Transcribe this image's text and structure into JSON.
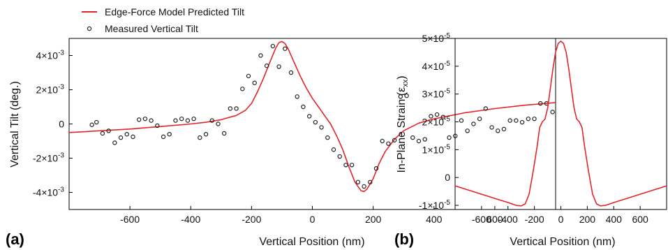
{
  "chart_data": [
    {
      "type": "line+scatter",
      "panel_label": "(a)",
      "xlabel": "Vertical Position (nm)",
      "ylabel": "Vertical Tilt (deg.)",
      "xlim": [
        -800,
        800
      ],
      "ylim": [
        -0.005,
        0.005
      ],
      "xticks": [
        -600,
        -400,
        -200,
        0,
        200,
        400,
        600
      ],
      "yticks": [
        {
          "value": 0.004,
          "mant": "4×10",
          "exp": "-3"
        },
        {
          "value": 0.002,
          "mant": "2×10",
          "exp": "-3"
        },
        {
          "value": 0,
          "mant": "0",
          "exp": ""
        },
        {
          "value": -0.002,
          "mant": "-2×10",
          "exp": "-3"
        },
        {
          "value": -0.004,
          "mant": "-4×10",
          "exp": "-3"
        }
      ],
      "legend": {
        "placement": "top-left, above plot",
        "entries": [
          {
            "label": "Edge-Force Model Predicted Tilt",
            "marker": "line",
            "color": "#e3242b"
          },
          {
            "label": "Measured Vertical Tilt",
            "marker": "circle",
            "color": "#222222"
          }
        ]
      },
      "series": [
        {
          "name": "Edge-Force Model Predicted Tilt",
          "kind": "line",
          "color": "#e3242b",
          "points": [
            [
              -800,
              -0.0005
            ],
            [
              -700,
              -0.0004
            ],
            [
              -600,
              -0.0003
            ],
            [
              -500,
              -0.00015
            ],
            [
              -400,
              0.0
            ],
            [
              -350,
              0.0001
            ],
            [
              -300,
              0.00025
            ],
            [
              -250,
              0.0005
            ],
            [
              -220,
              0.0008
            ],
            [
              -200,
              0.0012
            ],
            [
              -180,
              0.0019
            ],
            [
              -160,
              0.0027
            ],
            [
              -140,
              0.0036
            ],
            [
              -120,
              0.00445
            ],
            [
              -110,
              0.00475
            ],
            [
              -100,
              0.00482
            ],
            [
              -90,
              0.0047
            ],
            [
              -80,
              0.0044
            ],
            [
              -60,
              0.0036
            ],
            [
              -40,
              0.0028
            ],
            [
              -20,
              0.0021
            ],
            [
              0,
              0.0015
            ],
            [
              20,
              0.001
            ],
            [
              40,
              0.0005
            ],
            [
              60,
              0.0
            ],
            [
              80,
              -0.0007
            ],
            [
              100,
              -0.0015
            ],
            [
              120,
              -0.0025
            ],
            [
              140,
              -0.0034
            ],
            [
              160,
              -0.0039
            ],
            [
              170,
              -0.00395
            ],
            [
              180,
              -0.0038
            ],
            [
              200,
              -0.0032
            ],
            [
              220,
              -0.0023
            ],
            [
              240,
              -0.0016
            ],
            [
              270,
              -0.0009
            ],
            [
              300,
              -0.0004
            ],
            [
              350,
              5e-05
            ],
            [
              400,
              0.0003
            ],
            [
              500,
              0.00065
            ],
            [
              600,
              0.0009
            ],
            [
              700,
              0.0011
            ],
            [
              800,
              0.00125
            ]
          ]
        },
        {
          "name": "Measured Vertical Tilt",
          "kind": "scatter",
          "color": "#222222",
          "points": [
            [
              -725,
              -5e-05
            ],
            [
              -710,
              0.0001
            ],
            [
              -690,
              -0.00055
            ],
            [
              -670,
              -0.0004
            ],
            [
              -650,
              -0.0011
            ],
            [
              -630,
              -0.0008
            ],
            [
              -610,
              -0.0006
            ],
            [
              -590,
              -0.00075
            ],
            [
              -570,
              0.00025
            ],
            [
              -550,
              0.0003
            ],
            [
              -530,
              0.0002
            ],
            [
              -510,
              -0.0001
            ],
            [
              -490,
              -0.00075
            ],
            [
              -470,
              -0.0006
            ],
            [
              -450,
              0.0002
            ],
            [
              -430,
              0.0003
            ],
            [
              -410,
              0.0002
            ],
            [
              -390,
              0.0003
            ],
            [
              -370,
              -0.0008
            ],
            [
              -350,
              -0.0006
            ],
            [
              -330,
              0.0002
            ],
            [
              -310,
              0.0
            ],
            [
              -290,
              -0.00055
            ],
            [
              -270,
              0.0009
            ],
            [
              -250,
              0.0009
            ],
            [
              -230,
              0.00205
            ],
            [
              -210,
              0.0028
            ],
            [
              -190,
              0.0024
            ],
            [
              -170,
              0.004
            ],
            [
              -150,
              0.0034
            ],
            [
              -130,
              0.00455
            ],
            [
              -110,
              0.00335
            ],
            [
              -90,
              0.0044
            ],
            [
              -70,
              0.003
            ],
            [
              -50,
              0.0016
            ],
            [
              -30,
              0.001
            ],
            [
              -10,
              0.00045
            ],
            [
              10,
              0.0001
            ],
            [
              30,
              -0.0002
            ],
            [
              50,
              -0.0008
            ],
            [
              70,
              -0.0015
            ],
            [
              90,
              -0.0019
            ],
            [
              110,
              -0.0024
            ],
            [
              130,
              -0.0024
            ],
            [
              150,
              -0.0034
            ],
            [
              170,
              -0.00365
            ],
            [
              190,
              -0.0034
            ],
            [
              210,
              -0.0026
            ],
            [
              230,
              -0.001
            ],
            [
              250,
              -0.00115
            ],
            [
              270,
              -0.00095
            ],
            [
              290,
              0.0016
            ],
            [
              310,
              0.00165
            ],
            [
              330,
              -0.0008
            ],
            [
              350,
              -0.001
            ],
            [
              370,
              -0.0009
            ],
            [
              390,
              0.00045
            ],
            [
              410,
              0.00055
            ],
            [
              430,
              0.0004
            ],
            [
              450,
              -0.0008
            ],
            [
              470,
              -0.0007
            ],
            [
              490,
              0.0002
            ],
            [
              510,
              -0.0004
            ],
            [
              530,
              0.0
            ],
            [
              550,
              0.0003
            ],
            [
              570,
              0.0009
            ],
            [
              590,
              -0.0002
            ],
            [
              610,
              -0.0004
            ],
            [
              630,
              -0.0003
            ],
            [
              650,
              0.0002
            ],
            [
              670,
              0.0002
            ],
            [
              690,
              0.0001
            ],
            [
              710,
              0.0003
            ],
            [
              730,
              0.0003
            ],
            [
              750,
              0.0012
            ],
            [
              770,
              0.0012
            ],
            [
              790,
              0.0007
            ]
          ]
        }
      ]
    },
    {
      "type": "line",
      "panel_label": "(b)",
      "xlabel": "Vertical Position (nm)",
      "ylabel_main": "In-Plane Strain (ε",
      "ylabel_sub": "xx",
      "ylabel_end": ")",
      "xlim": [
        -800,
        800
      ],
      "ylim": [
        -1.15e-05,
        5e-05
      ],
      "xticks": [
        -600,
        -400,
        -200,
        0,
        200,
        400,
        600
      ],
      "yticks": [
        {
          "value": 5e-05,
          "mant": "5×10",
          "exp": "-5"
        },
        {
          "value": 4e-05,
          "mant": "4×10",
          "exp": "-5"
        },
        {
          "value": 3e-05,
          "mant": "3×10",
          "exp": "-5"
        },
        {
          "value": 2e-05,
          "mant": "2×10",
          "exp": "-5"
        },
        {
          "value": 1e-05,
          "mant": "1×10",
          "exp": "-5"
        },
        {
          "value": 0,
          "mant": "0",
          "exp": ""
        },
        {
          "value": -1e-05,
          "mant": "-1×10",
          "exp": "-5"
        }
      ],
      "series": [
        {
          "color": "#e3242b",
          "points": [
            [
              -800,
              -3e-06
            ],
            [
              -700,
              -4.5e-06
            ],
            [
              -600,
              -6e-06
            ],
            [
              -500,
              -7.5e-06
            ],
            [
              -400,
              -9e-06
            ],
            [
              -340,
              -1e-05
            ],
            [
              -300,
              -1.02e-05
            ],
            [
              -270,
              -9.5e-06
            ],
            [
              -240,
              -6e-06
            ],
            [
              -210,
              2e-06
            ],
            [
              -180,
              1.1e-05
            ],
            [
              -160,
              1.8e-05
            ],
            [
              -140,
              2e-05
            ],
            [
              -120,
              2.1e-05
            ],
            [
              -100,
              2.5e-05
            ],
            [
              -80,
              3.2e-05
            ],
            [
              -60,
              3.9e-05
            ],
            [
              -40,
              4.5e-05
            ],
            [
              -20,
              4.82e-05
            ],
            [
              0,
              4.9e-05
            ],
            [
              20,
              4.82e-05
            ],
            [
              40,
              4.5e-05
            ],
            [
              60,
              3.9e-05
            ],
            [
              80,
              3.2e-05
            ],
            [
              100,
              2.5e-05
            ],
            [
              120,
              2.1e-05
            ],
            [
              140,
              2e-05
            ],
            [
              160,
              1.8e-05
            ],
            [
              180,
              1.1e-05
            ],
            [
              210,
              2e-06
            ],
            [
              240,
              -6e-06
            ],
            [
              270,
              -9.5e-06
            ],
            [
              300,
              -1.02e-05
            ],
            [
              340,
              -1e-05
            ],
            [
              400,
              -9e-06
            ],
            [
              500,
              -7.5e-06
            ],
            [
              600,
              -6e-06
            ],
            [
              700,
              -4.5e-06
            ],
            [
              800,
              -3e-06
            ]
          ]
        }
      ]
    }
  ]
}
